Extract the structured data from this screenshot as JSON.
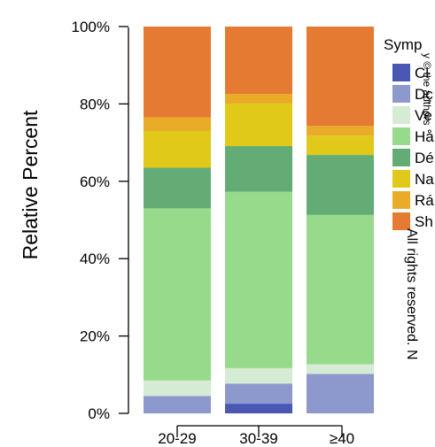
{
  "chart_data": {
    "type": "bar",
    "stacked": true,
    "ylabel": "Relative Percent",
    "xlabel": "",
    "ylim": [
      0,
      100
    ],
    "yticks": [
      "0%",
      "20%",
      "40%",
      "60%",
      "80%",
      "100%"
    ],
    "categories": [
      "20-29",
      "30-39",
      "≥40"
    ],
    "legend": {
      "title": "Symp",
      "position": "right",
      "entries": [
        "Cl",
        "Dç",
        "Ve",
        "Hå",
        "Dé",
        "Na",
        "Rá",
        "Sh"
      ]
    },
    "series": [
      {
        "values": [
          0,
          2.5,
          0
        ],
        "color": "#4a58b4"
      },
      {
        "values": [
          4.5,
          5.2,
          10.2
        ],
        "color": "#8d98cc"
      },
      {
        "values": [
          4.0,
          4.0,
          2.5
        ],
        "color": "#d6ebd3"
      },
      {
        "values": [
          44.5,
          45.6,
          38.6
        ],
        "color": "#98da8c"
      },
      {
        "values": [
          10.5,
          11.8,
          15.5
        ],
        "color": "#63ac76"
      },
      {
        "values": [
          9.5,
          11.0,
          5.0
        ],
        "color": "#e0c918"
      },
      {
        "values": [
          3.5,
          2.5,
          2.5
        ],
        "color": "#e9ab28"
      },
      {
        "values": [
          23.5,
          17.4,
          25.7
        ],
        "color": "#e57a33"
      }
    ]
  },
  "watermark_text": "All rights reserved. N",
  "watermark_text_faint": "y © the authors"
}
